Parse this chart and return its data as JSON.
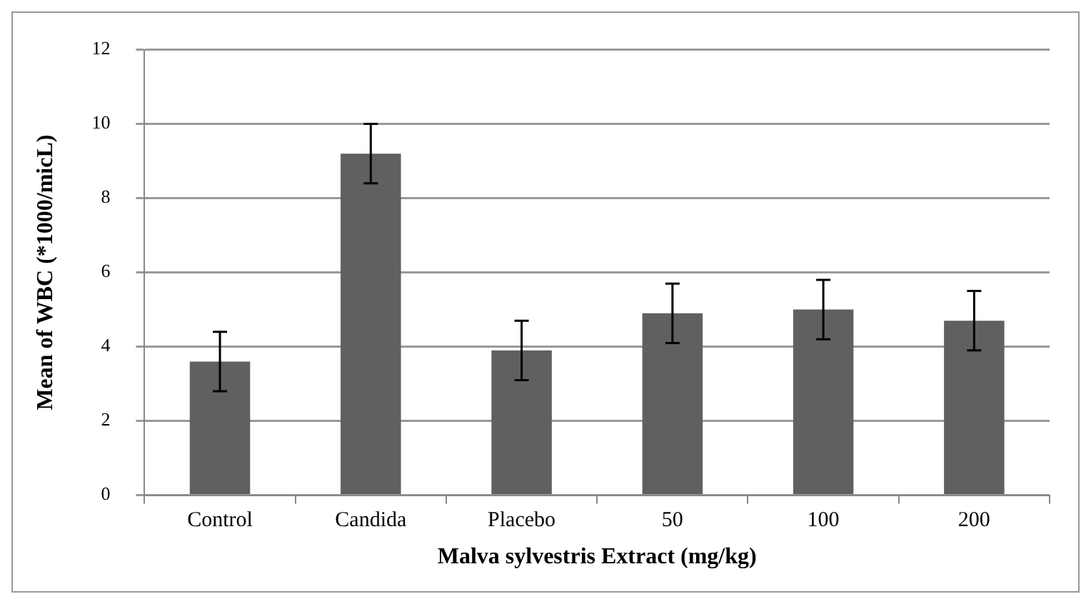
{
  "chart_data": {
    "type": "bar",
    "xlabel": "Malva sylvestris Extract (mg/kg)",
    "ylabel": "Mean of WBC (*1000/micL)",
    "categories": [
      "Control",
      "Candida",
      "Placebo",
      "50",
      "100",
      "200"
    ],
    "values": [
      3.6,
      9.2,
      3.9,
      4.9,
      5.0,
      4.7
    ],
    "errors": [
      0.8,
      0.8,
      0.8,
      0.8,
      0.8,
      0.8
    ],
    "color": "#606060",
    "ylim": [
      0,
      12
    ],
    "yticks": [
      0,
      2,
      4,
      6,
      8,
      10,
      12
    ],
    "grid": "y",
    "legend": false
  }
}
